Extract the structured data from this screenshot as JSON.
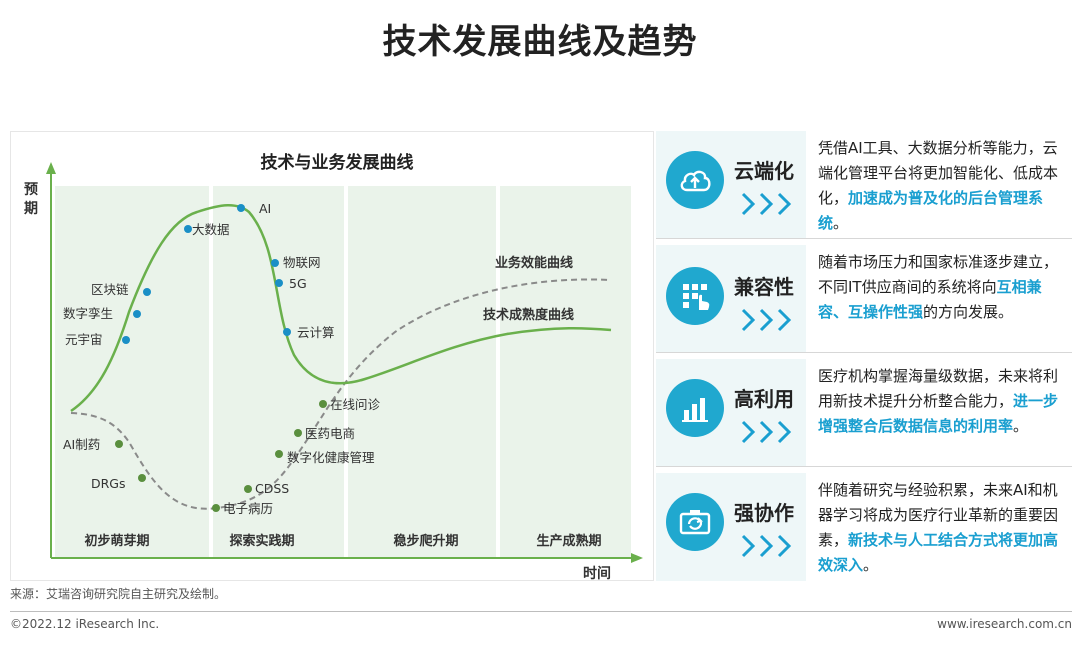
{
  "page_title": "技术发展曲线及趋势",
  "diagram": {
    "title": "技术与业务发展曲线",
    "y_axis_label": [
      "预",
      "期"
    ],
    "x_axis_label": "时间",
    "phases": [
      "初步萌芽期",
      "探索实践期",
      "稳步爬升期",
      "生产成熟期"
    ],
    "curves": [
      {
        "name": "业务效能曲线",
        "style": "dashed",
        "color": "#8a8a8a"
      },
      {
        "name": "技术成熟度曲线",
        "style": "solid",
        "color": "#6ab04c"
      }
    ],
    "tech_points": [
      "元宇宙",
      "数字孪生",
      "区块链",
      "大数据",
      "AI",
      "物联网",
      "5G",
      "云计算"
    ],
    "business_points": [
      "AI制药",
      "DRGs",
      "电子病历",
      "CDSS",
      "数字化健康管理",
      "医药电商",
      "在线问诊"
    ],
    "colors": {
      "band": "#eaf3ea",
      "point": "#1a8fc6",
      "tech_curve": "#6ab04c",
      "business_curve": "#8a8a8a"
    }
  },
  "trends": [
    {
      "name": "云端化",
      "icon": "cloud-upload-icon",
      "text": "凭借AI工具、大数据分析等能力，云端化管理平台将更加智能化、低成本化，",
      "highlight": "加速成为普及化的后台管理系统",
      "suffix": "。"
    },
    {
      "name": "兼容性",
      "icon": "grid-touch-icon",
      "text": "随着市场压力和国家标准逐步建立，不同IT供应商间的系统将向",
      "highlight": "互相兼容、互操作性强",
      "suffix": "的方向发展。"
    },
    {
      "name": "高利用",
      "icon": "bar-chart-icon",
      "text": "医疗机构掌握海量级数据，未来将利用新技术提升分析整合能力，",
      "highlight": "进一步增强整合后数据信息的利用率",
      "suffix": "。"
    },
    {
      "name": "强协作",
      "icon": "collaboration-icon",
      "text": "伴随着研究与经验积累，未来AI和机器学习将成为医疗行业革新的重要因素，",
      "highlight": "新技术与人工结合方式将更加高效深入",
      "suffix": "。"
    }
  ],
  "accent_color": "#1a9fd0",
  "source": "来源：艾瑞咨询研究院自主研究及绘制。",
  "copyright": "©2022.12 iResearch Inc.",
  "website": "www.iresearch.com.cn"
}
